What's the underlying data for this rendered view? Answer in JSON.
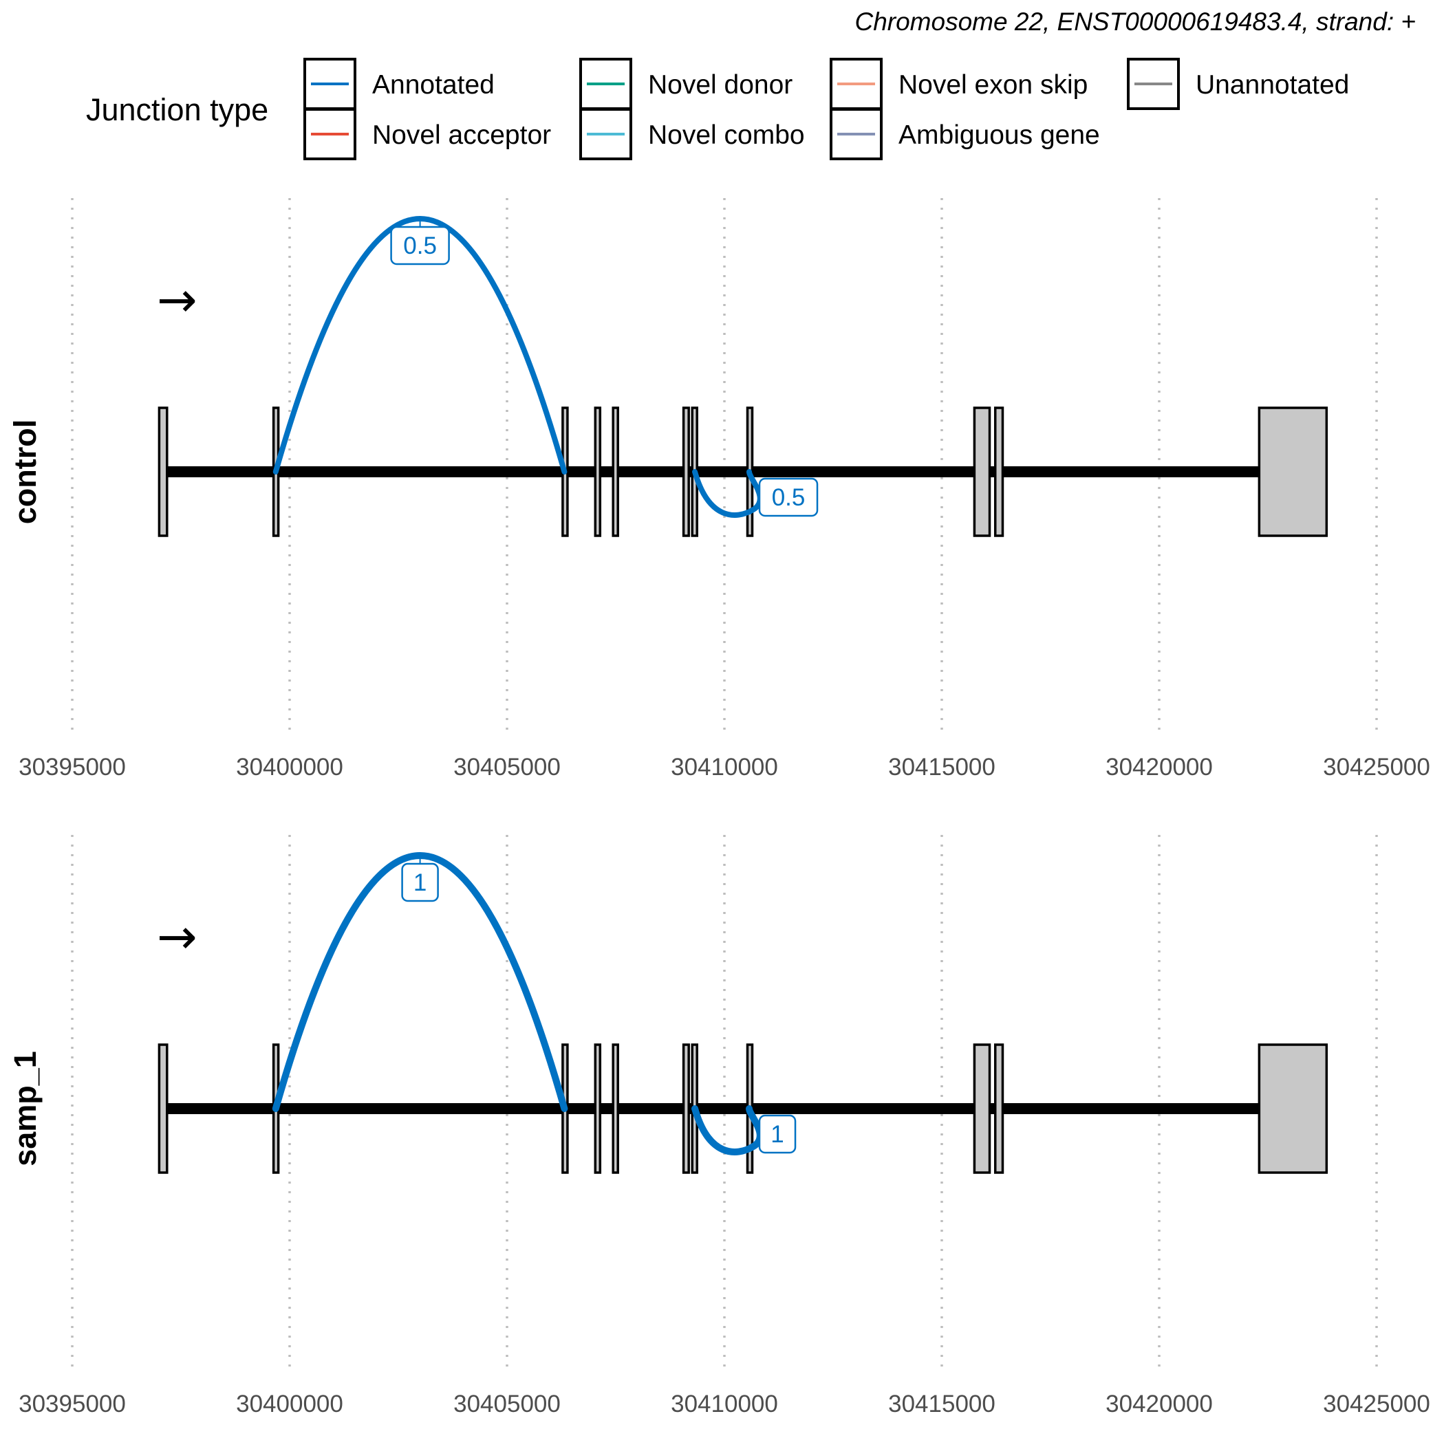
{
  "chart_data": {
    "type": "sashimi",
    "subtitle": "Chromosome 22, ENST00000619483.4, strand: +",
    "strand_arrow": "→",
    "legend": {
      "title": "Junction type",
      "entries": [
        {
          "label": "Annotated",
          "color": "#0072c3"
        },
        {
          "label": "Novel acceptor",
          "color": "#e64b35"
        },
        {
          "label": "Novel donor",
          "color": "#00a087"
        },
        {
          "label": "Novel combo",
          "color": "#4dbbd5"
        },
        {
          "label": "Novel exon skip",
          "color": "#f39b7f"
        },
        {
          "label": "Ambiguous gene",
          "color": "#8491b4"
        },
        {
          "label": "Unannotated",
          "color": "#888888"
        }
      ]
    },
    "x_axis": {
      "lim": [
        30395000,
        30425000
      ],
      "ticks": [
        30395000,
        30400000,
        30405000,
        30410000,
        30415000,
        30420000,
        30425000
      ],
      "tick_labels": [
        "30395000",
        "30400000",
        "30405000",
        "30410000",
        "30415000",
        "30420000",
        "30425000"
      ],
      "grid": "vertical dotted"
    },
    "intron_range": [
      30397100,
      30422300
    ],
    "exons": [
      {
        "start": 30397000,
        "end": 30397180
      },
      {
        "start": 30399630,
        "end": 30399730
      },
      {
        "start": 30406280,
        "end": 30406370
      },
      {
        "start": 30407030,
        "end": 30407120
      },
      {
        "start": 30407440,
        "end": 30407530
      },
      {
        "start": 30409060,
        "end": 30409180
      },
      {
        "start": 30409260,
        "end": 30409370
      },
      {
        "start": 30410530,
        "end": 30410620
      },
      {
        "start": 30415750,
        "end": 30416100
      },
      {
        "start": 30416230,
        "end": 30416400
      },
      {
        "start": 30422300,
        "end": 30423850
      }
    ],
    "panels": [
      {
        "label": "control",
        "junctions": [
          {
            "start": 30399680,
            "end": 30406320,
            "value": 0.5,
            "label": "0.5",
            "side": "above",
            "type": "Annotated"
          },
          {
            "start": 30409320,
            "end": 30410570,
            "value": 0.5,
            "label": "0.5",
            "side": "below",
            "type": "Annotated"
          }
        ]
      },
      {
        "label": "samp_1",
        "junctions": [
          {
            "start": 30399680,
            "end": 30406320,
            "value": 1,
            "label": "1",
            "side": "above",
            "type": "Annotated"
          },
          {
            "start": 30409320,
            "end": 30410570,
            "value": 1,
            "label": "1",
            "side": "below",
            "type": "Annotated"
          }
        ]
      }
    ]
  }
}
